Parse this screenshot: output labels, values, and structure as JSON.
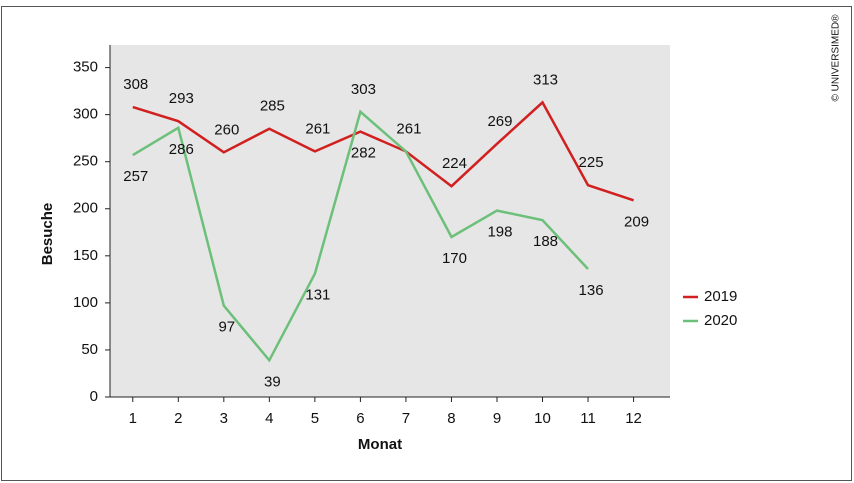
{
  "chart_data": {
    "type": "line",
    "x_label": "Monat",
    "y_label": "Besuche",
    "credit": "© UNIVERSIMED®",
    "x": [
      1,
      2,
      3,
      4,
      5,
      6,
      7,
      8,
      9,
      10,
      11,
      12
    ],
    "xlim": [
      0.5,
      12.8
    ],
    "xticks": [
      1,
      2,
      3,
      4,
      5,
      6,
      7,
      8,
      9,
      10,
      11,
      12
    ],
    "ylim": [
      0,
      374
    ],
    "yticks": [
      0,
      50,
      100,
      150,
      200,
      250,
      300,
      350
    ],
    "legend": "right",
    "series": [
      {
        "name": "2019",
        "color": "#d0201f",
        "values": [
          308,
          293,
          260,
          285,
          261,
          282,
          261,
          224,
          269,
          313,
          225,
          209
        ],
        "value_labels": [
          "308",
          "293",
          "260",
          "285",
          "261",
          "282",
          "261",
          "224",
          "269",
          "313",
          "225",
          "209"
        ]
      },
      {
        "name": "2020",
        "color": "#6cc07a",
        "values": [
          257,
          286,
          97,
          39,
          131,
          303,
          261,
          170,
          198,
          188,
          136,
          null
        ],
        "value_labels": [
          "257",
          "286",
          "97",
          "39",
          "131",
          "303",
          null,
          "170",
          "198",
          "188",
          "136",
          null
        ]
      }
    ]
  }
}
